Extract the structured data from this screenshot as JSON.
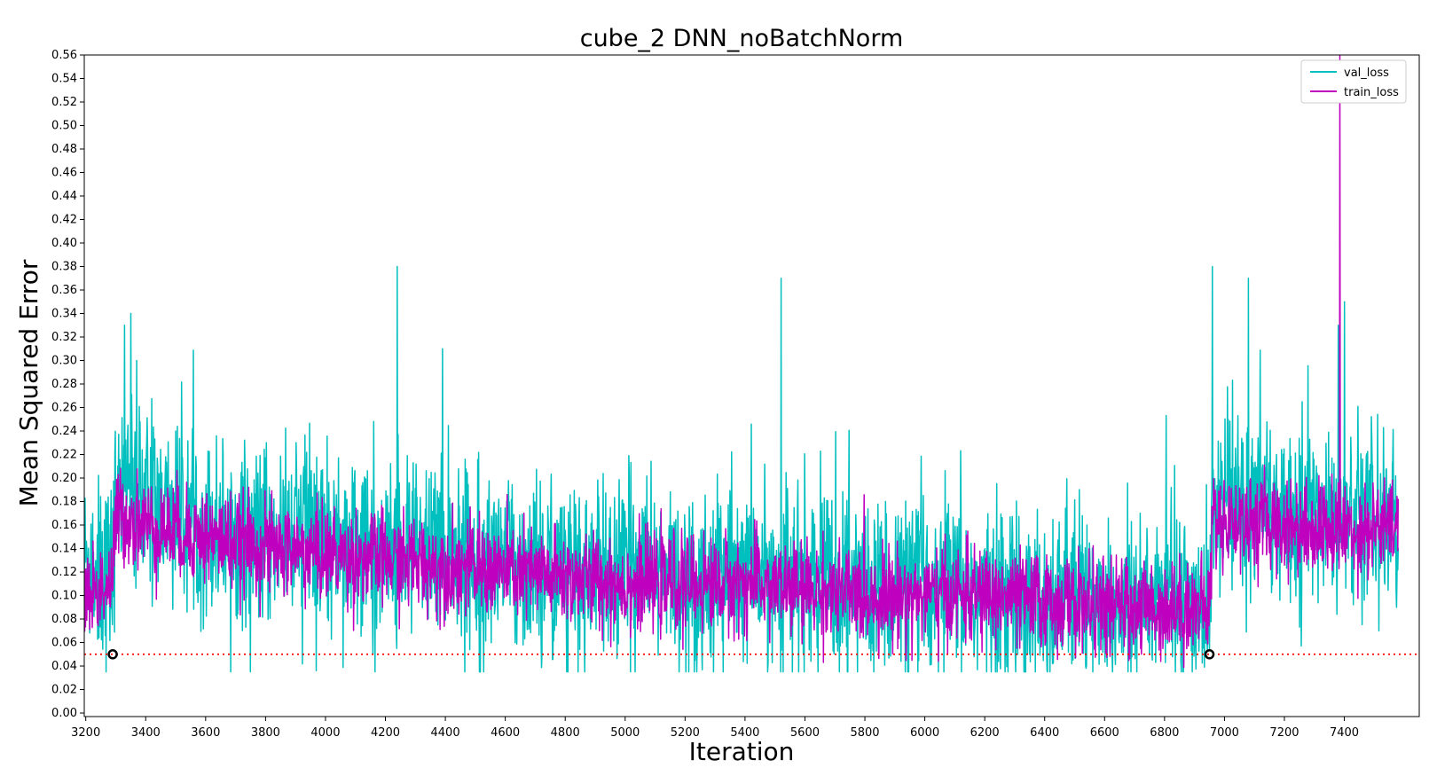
{
  "chart_data": {
    "type": "line",
    "title": "cube_2 DNN_noBatchNorm",
    "xlabel": "Iteration",
    "ylabel": "Mean Squared Error",
    "xlim": [
      3195,
      7650
    ],
    "ylim": [
      -0.003,
      0.56
    ],
    "xticks": [
      3200,
      3400,
      3600,
      3800,
      4000,
      4200,
      4400,
      4600,
      4800,
      5000,
      5200,
      5400,
      5600,
      5800,
      6000,
      6200,
      6400,
      6600,
      6800,
      7000,
      7200,
      7400
    ],
    "xtick_labels": [
      "3200",
      "3400",
      "3600",
      "3800",
      "4000",
      "4200",
      "4400",
      "4600",
      "4800",
      "5000",
      "5200",
      "5400",
      "5600",
      "5800",
      "6000",
      "6200",
      "6400",
      "6600",
      "6800",
      "7000",
      "7200",
      "7400"
    ],
    "yticks": [
      0.0,
      0.02,
      0.04,
      0.06,
      0.08,
      0.1,
      0.12,
      0.14,
      0.16,
      0.18,
      0.2,
      0.22,
      0.24,
      0.26,
      0.28,
      0.3,
      0.32,
      0.34,
      0.36,
      0.38,
      0.4,
      0.42,
      0.44,
      0.46,
      0.48,
      0.5,
      0.52,
      0.54,
      0.56
    ],
    "ytick_labels": [
      "0.00",
      "0.02",
      "0.04",
      "0.06",
      "0.08",
      "0.10",
      "0.12",
      "0.14",
      "0.16",
      "0.18",
      "0.20",
      "0.22",
      "0.24",
      "0.26",
      "0.28",
      "0.30",
      "0.32",
      "0.34",
      "0.36",
      "0.38",
      "0.40",
      "0.42",
      "0.44",
      "0.46",
      "0.48",
      "0.50",
      "0.52",
      "0.54",
      "0.56"
    ],
    "grid": false,
    "legend_position": "top-right",
    "series": [
      {
        "name": "val_loss",
        "color": "#00bfbf",
        "x_range": [
          3195,
          7580
        ],
        "points_approx": [
          [
            3200,
            0.13
          ],
          [
            3290,
            0.12
          ],
          [
            3300,
            0.18
          ],
          [
            3350,
            0.19
          ],
          [
            3400,
            0.18
          ],
          [
            3600,
            0.16
          ],
          [
            3800,
            0.15
          ],
          [
            4000,
            0.15
          ],
          [
            4200,
            0.14
          ],
          [
            4400,
            0.14
          ],
          [
            4600,
            0.13
          ],
          [
            4800,
            0.12
          ],
          [
            5000,
            0.12
          ],
          [
            5200,
            0.11
          ],
          [
            5400,
            0.12
          ],
          [
            5600,
            0.11
          ],
          [
            5800,
            0.11
          ],
          [
            6000,
            0.11
          ],
          [
            6200,
            0.1
          ],
          [
            6400,
            0.1
          ],
          [
            6600,
            0.1
          ],
          [
            6800,
            0.1
          ],
          [
            6950,
            0.09
          ],
          [
            6960,
            0.18
          ],
          [
            7200,
            0.17
          ],
          [
            7400,
            0.17
          ],
          [
            7580,
            0.16
          ]
        ],
        "spikes": [
          [
            3330,
            0.33
          ],
          [
            3350,
            0.34
          ],
          [
            3370,
            0.3
          ],
          [
            4240,
            0.38
          ],
          [
            4390,
            0.31
          ],
          [
            5520,
            0.37
          ],
          [
            6960,
            0.38
          ],
          [
            7080,
            0.37
          ],
          [
            7380,
            0.33
          ],
          [
            7400,
            0.35
          ]
        ]
      },
      {
        "name": "train_loss",
        "color": "#bf00bf",
        "x_range": [
          3195,
          7580
        ],
        "points_approx": [
          [
            3200,
            0.1
          ],
          [
            3290,
            0.11
          ],
          [
            3300,
            0.17
          ],
          [
            3400,
            0.16
          ],
          [
            3600,
            0.15
          ],
          [
            3800,
            0.14
          ],
          [
            4000,
            0.135
          ],
          [
            4200,
            0.13
          ],
          [
            4400,
            0.125
          ],
          [
            4600,
            0.12
          ],
          [
            4800,
            0.115
          ],
          [
            5000,
            0.11
          ],
          [
            5200,
            0.11
          ],
          [
            5400,
            0.11
          ],
          [
            5600,
            0.105
          ],
          [
            5800,
            0.1
          ],
          [
            6000,
            0.1
          ],
          [
            6200,
            0.1
          ],
          [
            6400,
            0.095
          ],
          [
            6600,
            0.09
          ],
          [
            6800,
            0.09
          ],
          [
            6950,
            0.09
          ],
          [
            6960,
            0.165
          ],
          [
            7200,
            0.16
          ],
          [
            7400,
            0.155
          ],
          [
            7580,
            0.16
          ]
        ],
        "spikes": [
          [
            7385,
            0.56
          ]
        ]
      }
    ],
    "threshold_line": {
      "y": 0.05,
      "color": "#ff0000",
      "style": "dotted"
    },
    "markers": [
      {
        "x": 3290,
        "y": 0.05,
        "shape": "open-circle"
      },
      {
        "x": 6950,
        "y": 0.05,
        "shape": "open-circle"
      }
    ]
  }
}
